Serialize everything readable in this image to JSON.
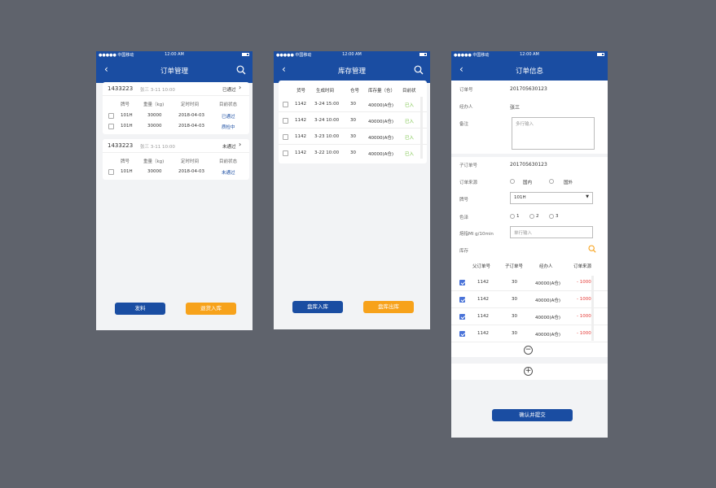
{
  "status": {
    "carrier": "●●●●● 中国移动",
    "time": "12:00 AM"
  },
  "screen1": {
    "title": "订单管理",
    "orders": [
      {
        "id": "1433223",
        "meta": "张三 3-11 10:00",
        "status": "已通过",
        "headers": [
          "牌号",
          "重量（kg)",
          "定时时间",
          "目前状态"
        ],
        "rows": [
          {
            "grade": "101H",
            "weight": "30000",
            "date": "2018-04-03",
            "state": "已通过"
          },
          {
            "grade": "101H",
            "weight": "30000",
            "date": "2018-04-03",
            "state": "质检中"
          }
        ]
      },
      {
        "id": "1433223",
        "meta": "张三 3-11 10:00",
        "status": "未通过",
        "headers": [
          "牌号",
          "重量（kg)",
          "定时时间",
          "目前状态"
        ],
        "rows": [
          {
            "grade": "101H",
            "weight": "30000",
            "date": "2018-04-03",
            "state": "未通过"
          }
        ]
      }
    ],
    "btn_left": "发料",
    "btn_right": "退货入库"
  },
  "screen2": {
    "title": "库存管理",
    "headers": [
      "货号",
      "生成时间",
      "仓号",
      "库存量（仓）",
      "目前状"
    ],
    "rows": [
      {
        "code": "1142",
        "time": "3-24 15:00",
        "wh": "30",
        "qty": "40000(A仓)",
        "state": "已入"
      },
      {
        "code": "1142",
        "time": "3-24 10:00",
        "wh": "30",
        "qty": "40000(A仓)",
        "state": "已入"
      },
      {
        "code": "1142",
        "time": "3-23 10:00",
        "wh": "30",
        "qty": "40000(A仓)",
        "state": "已入"
      },
      {
        "code": "1142",
        "time": "3-22 10:00",
        "wh": "30",
        "qty": "40000(A仓)",
        "state": "已入"
      }
    ],
    "btn_left": "盘库入库",
    "btn_right": "盘库出库"
  },
  "screen3": {
    "title": "订单信息",
    "order_no_label": "订单号",
    "order_no": "201705630123",
    "handler_label": "经办人",
    "handler": "张三",
    "remark_label": "备注",
    "remark_placeholder": "多行输入",
    "sub_no_label": "子订单号",
    "sub_no": "201705630123",
    "source_label": "订单来源",
    "source_opt1": "国内",
    "source_opt2": "国外",
    "grade_label": "牌号",
    "grade_value": "101H",
    "color_label": "色泽",
    "color_opts": [
      "1",
      "2",
      "3"
    ],
    "melt_label": "熔指MI g/10min",
    "melt_placeholder": "单行输入",
    "stock_label": "库存",
    "table_headers": [
      "父订单号",
      "子订单号",
      "经办人",
      "订单来源"
    ],
    "rows": [
      {
        "parent": "1142",
        "child": "30",
        "handler": "40000(A仓)",
        "amount": "- 1000"
      },
      {
        "parent": "1142",
        "child": "30",
        "handler": "40000(A仓)",
        "amount": "- 1000"
      },
      {
        "parent": "1142",
        "child": "30",
        "handler": "40000(A仓)",
        "amount": "- 1000"
      },
      {
        "parent": "1142",
        "child": "30",
        "handler": "40000(A仓)",
        "amount": "- 1000"
      }
    ],
    "minus": "−",
    "plus": "+",
    "submit": "确认并提交"
  }
}
